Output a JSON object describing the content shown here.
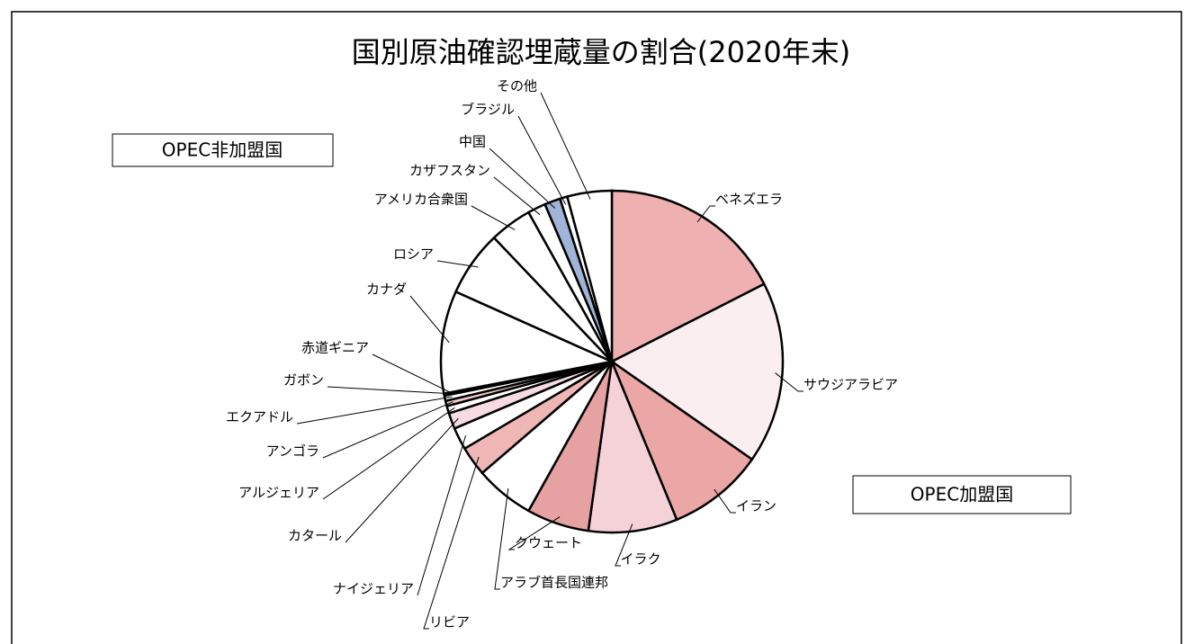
{
  "chart_data": {
    "type": "pie",
    "title": "国別原油確認埋蔵量の割合(2020年末)",
    "annotations": [
      "OPEC非加盟国",
      "OPEC加盟国"
    ],
    "categories": [
      "ベネズエラ",
      "サウジアラビア",
      "イラン",
      "イラク",
      "クウェート",
      "アラブ首長国連邦",
      "リビア",
      "ナイジェリア",
      "カタール",
      "アルジェリア",
      "アンゴラ",
      "エクアドル",
      "ガボン",
      "赤道ギニア",
      "カナダ",
      "ロシア",
      "アメリカ合衆国",
      "カザフスタン",
      "中国",
      "ブラジル",
      "その他"
    ],
    "values": [
      17.5,
      17.2,
      9.1,
      8.4,
      5.9,
      5.6,
      2.8,
      2.1,
      1.5,
      0.7,
      0.5,
      0.5,
      0.1,
      0.1,
      9.7,
      6.2,
      4.0,
      1.7,
      1.5,
      0.7,
      4.2
    ],
    "colors": [
      "#eeb0b0",
      "#fbeef0",
      "#eba6a6",
      "#f5d2d8",
      "#e6a2a2",
      "#ffffff",
      "#efb6b6",
      "#ffffff",
      "#f7dbe2",
      "#ffffff",
      "#f3c8c8",
      "#ffffff",
      "#ffffff",
      "#ffffff",
      "#ffffff",
      "#ffffff",
      "#ffffff",
      "#ffffff",
      "#9fb4d6",
      "#ffffff",
      "#ffffff"
    ]
  }
}
